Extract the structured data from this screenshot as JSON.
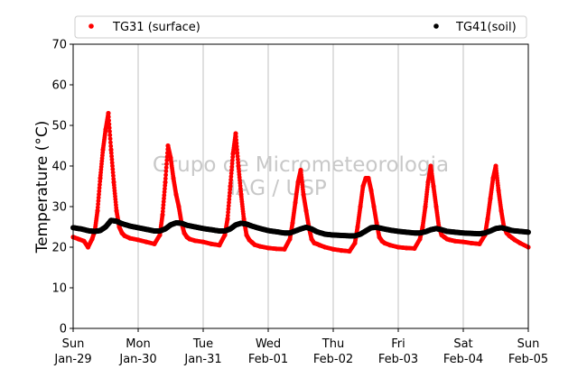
{
  "chart_data": {
    "type": "scatter",
    "title": "",
    "xlabel": "",
    "ylabel": "Temperature (°C)",
    "ylim": [
      0,
      70
    ],
    "yticks": [
      0,
      10,
      20,
      30,
      40,
      50,
      60,
      70
    ],
    "xlim": [
      "2017-01-29 00:00",
      "2017-02-05 00:00"
    ],
    "xticks": [
      {
        "day": "Sun",
        "date": "Jan-29"
      },
      {
        "day": "Mon",
        "date": "Jan-30"
      },
      {
        "day": "Tue",
        "date": "Jan-31"
      },
      {
        "day": "Wed",
        "date": "Feb-01"
      },
      {
        "day": "Thu",
        "date": "Feb-02"
      },
      {
        "day": "Fri",
        "date": "Feb-03"
      },
      {
        "day": "Sat",
        "date": "Feb-04"
      },
      {
        "day": "Sun",
        "date": "Feb-05"
      }
    ],
    "grid": "vertical",
    "legend_position": "top",
    "watermark": [
      "Grupo de Micrometeorologia",
      "IAG / USP"
    ],
    "series": [
      {
        "name": "TG31 (surface)",
        "color": "#ff0000",
        "x": [
          "2017-01-29 00:00",
          "2017-01-29 02:00",
          "2017-01-29 04:00",
          "2017-01-29 05:30",
          "2017-01-29 07:00",
          "2017-01-29 08:00",
          "2017-01-29 09:00",
          "2017-01-29 10:00",
          "2017-01-29 11:00",
          "2017-01-29 12:00",
          "2017-01-29 13:00",
          "2017-01-29 14:00",
          "2017-01-29 15:00",
          "2017-01-29 16:00",
          "2017-01-29 17:00",
          "2017-01-29 18:00",
          "2017-01-29 19:00",
          "2017-01-29 21:00",
          "2017-01-30 00:00",
          "2017-01-30 03:00",
          "2017-01-30 06:00",
          "2017-01-30 08:00",
          "2017-01-30 09:00",
          "2017-01-30 10:00",
          "2017-01-30 11:00",
          "2017-01-30 12:00",
          "2017-01-30 13:00",
          "2017-01-30 14:00",
          "2017-01-30 15:00",
          "2017-01-30 16:00",
          "2017-01-30 17:00",
          "2017-01-30 18:00",
          "2017-01-30 19:00",
          "2017-01-30 21:00",
          "2017-01-31 00:00",
          "2017-01-31 03:00",
          "2017-01-31 06:00",
          "2017-01-31 08:00",
          "2017-01-31 09:00",
          "2017-01-31 10:00",
          "2017-01-31 11:00",
          "2017-01-31 12:00",
          "2017-01-31 13:00",
          "2017-01-31 14:00",
          "2017-01-31 15:00",
          "2017-01-31 16:00",
          "2017-01-31 17:00",
          "2017-01-31 18:00",
          "2017-01-31 19:00",
          "2017-01-31 21:00",
          "2017-02-01 00:00",
          "2017-02-01 03:00",
          "2017-02-01 06:00",
          "2017-02-01 08:00",
          "2017-02-01 09:00",
          "2017-02-01 10:00",
          "2017-02-01 11:00",
          "2017-02-01 12:00",
          "2017-02-01 13:00",
          "2017-02-01 14:00",
          "2017-02-01 15:00",
          "2017-02-01 16:00",
          "2017-02-01 17:00",
          "2017-02-01 18:00",
          "2017-02-01 19:00",
          "2017-02-01 21:00",
          "2017-02-02 00:00",
          "2017-02-02 03:00",
          "2017-02-02 06:00",
          "2017-02-02 08:00",
          "2017-02-02 09:00",
          "2017-02-02 10:00",
          "2017-02-02 11:00",
          "2017-02-02 12:00",
          "2017-02-02 13:00",
          "2017-02-02 14:00",
          "2017-02-02 15:00",
          "2017-02-02 16:00",
          "2017-02-02 17:00",
          "2017-02-02 18:00",
          "2017-02-02 19:00",
          "2017-02-02 21:00",
          "2017-02-03 00:00",
          "2017-02-03 03:00",
          "2017-02-03 06:00",
          "2017-02-03 08:00",
          "2017-02-03 09:00",
          "2017-02-03 10:00",
          "2017-02-03 11:00",
          "2017-02-03 12:00",
          "2017-02-03 13:00",
          "2017-02-03 14:00",
          "2017-02-03 15:00",
          "2017-02-03 16:00",
          "2017-02-03 17:00",
          "2017-02-03 18:00",
          "2017-02-03 19:00",
          "2017-02-03 21:00",
          "2017-02-04 00:00",
          "2017-02-04 03:00",
          "2017-02-04 06:00",
          "2017-02-04 08:00",
          "2017-02-04 09:00",
          "2017-02-04 10:00",
          "2017-02-04 11:00",
          "2017-02-04 12:00",
          "2017-02-04 13:00",
          "2017-02-04 14:00",
          "2017-02-04 15:00",
          "2017-02-04 16:00",
          "2017-02-04 17:00",
          "2017-02-04 18:00",
          "2017-02-04 19:00",
          "2017-02-04 21:00",
          "2017-02-05 00:00"
        ],
        "y": [
          22.5,
          22.0,
          21.5,
          20.0,
          22.0,
          24.0,
          29.0,
          37.0,
          44.0,
          49.0,
          53.0,
          44.0,
          36.0,
          29.0,
          25.0,
          23.5,
          22.8,
          22.2,
          21.8,
          21.3,
          20.8,
          23.0,
          28.0,
          36.0,
          45.0,
          42.0,
          37.0,
          33.0,
          30.0,
          26.0,
          23.5,
          22.5,
          22.0,
          21.6,
          21.3,
          20.8,
          20.5,
          23.0,
          27.0,
          35.0,
          43.0,
          48.0,
          40.0,
          33.0,
          27.0,
          23.0,
          21.8,
          21.2,
          20.6,
          20.2,
          19.8,
          19.6,
          19.5,
          22.0,
          26.0,
          31.0,
          36.0,
          39.0,
          33.0,
          29.0,
          25.0,
          22.0,
          21.0,
          20.8,
          20.5,
          20.0,
          19.5,
          19.2,
          19.0,
          21.0,
          25.0,
          30.0,
          35.0,
          37.0,
          37.0,
          34.0,
          30.0,
          26.0,
          22.5,
          21.5,
          21.0,
          20.5,
          20.0,
          19.8,
          19.7,
          22.0,
          25.0,
          30.0,
          36.0,
          40.0,
          35.0,
          30.0,
          25.0,
          23.0,
          22.5,
          22.0,
          21.8,
          21.5,
          21.3,
          21.0,
          20.8,
          23.0,
          27.0,
          32.0,
          37.0,
          40.0,
          34.0,
          29.0,
          25.0,
          23.5,
          22.8,
          22.3,
          21.8,
          21.0,
          20.0
        ]
      },
      {
        "name": "TG41(soil)",
        "color": "#000000",
        "x": [
          "2017-01-29 00:00",
          "2017-01-29 03:00",
          "2017-01-29 06:00",
          "2017-01-29 08:00",
          "2017-01-29 10:00",
          "2017-01-29 12:00",
          "2017-01-29 14:00",
          "2017-01-29 16:00",
          "2017-01-29 18:00",
          "2017-01-29 21:00",
          "2017-01-30 00:00",
          "2017-01-30 03:00",
          "2017-01-30 06:00",
          "2017-01-30 08:00",
          "2017-01-30 10:00",
          "2017-01-30 12:00",
          "2017-01-30 14:00",
          "2017-01-30 16:00",
          "2017-01-30 18:00",
          "2017-01-30 21:00",
          "2017-01-31 00:00",
          "2017-01-31 03:00",
          "2017-01-31 06:00",
          "2017-01-31 08:00",
          "2017-01-31 10:00",
          "2017-01-31 12:00",
          "2017-01-31 14:00",
          "2017-01-31 16:00",
          "2017-01-31 18:00",
          "2017-01-31 21:00",
          "2017-02-01 00:00",
          "2017-02-01 03:00",
          "2017-02-01 06:00",
          "2017-02-01 08:00",
          "2017-02-01 10:00",
          "2017-02-01 12:00",
          "2017-02-01 14:00",
          "2017-02-01 16:00",
          "2017-02-01 18:00",
          "2017-02-01 21:00",
          "2017-02-02 00:00",
          "2017-02-02 03:00",
          "2017-02-02 06:00",
          "2017-02-02 08:00",
          "2017-02-02 10:00",
          "2017-02-02 12:00",
          "2017-02-02 14:00",
          "2017-02-02 16:00",
          "2017-02-02 18:00",
          "2017-02-02 21:00",
          "2017-02-03 00:00",
          "2017-02-03 03:00",
          "2017-02-03 06:00",
          "2017-02-03 08:00",
          "2017-02-03 10:00",
          "2017-02-03 12:00",
          "2017-02-03 14:00",
          "2017-02-03 16:00",
          "2017-02-03 18:00",
          "2017-02-03 21:00",
          "2017-02-04 00:00",
          "2017-02-04 03:00",
          "2017-02-04 06:00",
          "2017-02-04 08:00",
          "2017-02-04 10:00",
          "2017-02-04 12:00",
          "2017-02-04 14:00",
          "2017-02-04 16:00",
          "2017-02-04 18:00",
          "2017-02-04 21:00",
          "2017-02-05 00:00"
        ],
        "y": [
          24.8,
          24.5,
          24.0,
          23.9,
          24.1,
          25.0,
          26.6,
          26.4,
          25.8,
          25.2,
          24.8,
          24.4,
          24.0,
          24.0,
          24.5,
          25.5,
          26.0,
          25.9,
          25.4,
          25.0,
          24.6,
          24.3,
          24.0,
          24.0,
          24.5,
          25.5,
          25.9,
          25.7,
          25.2,
          24.6,
          24.1,
          23.8,
          23.5,
          23.5,
          24.0,
          24.5,
          24.9,
          24.5,
          23.8,
          23.2,
          23.0,
          22.9,
          22.8,
          22.8,
          23.2,
          24.0,
          24.8,
          24.9,
          24.6,
          24.2,
          23.9,
          23.7,
          23.5,
          23.5,
          23.8,
          24.3,
          24.6,
          24.3,
          23.9,
          23.7,
          23.5,
          23.4,
          23.3,
          23.5,
          24.0,
          24.6,
          24.8,
          24.5,
          24.1,
          23.9,
          23.7
        ]
      }
    ]
  }
}
